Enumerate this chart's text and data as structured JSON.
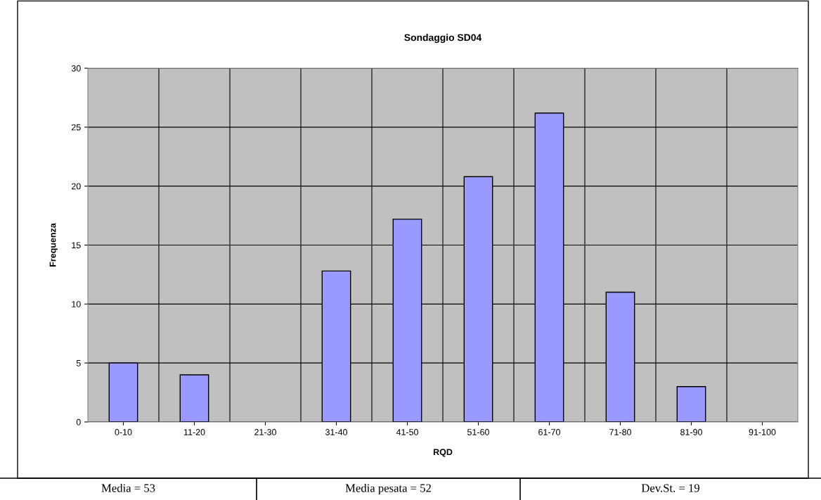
{
  "chart_data": {
    "type": "bar",
    "title": "Sondaggio SD04",
    "xlabel": "RQD",
    "ylabel": "Frequenza",
    "categories": [
      "0-10",
      "11-20",
      "21-30",
      "31-40",
      "41-50",
      "51-60",
      "61-70",
      "71-80",
      "81-90",
      "91-100"
    ],
    "values": [
      5,
      4,
      0,
      12.8,
      17.2,
      20.8,
      26.2,
      11,
      3,
      0
    ],
    "color": "#9999ff",
    "ylim": [
      0,
      30
    ],
    "yticks": [
      0,
      5,
      10,
      15,
      20,
      25,
      30
    ],
    "grid": true,
    "legend": false,
    "annotations": [
      "Media = 53",
      "Media pesata = 52",
      "Dev.St. = 19"
    ]
  }
}
